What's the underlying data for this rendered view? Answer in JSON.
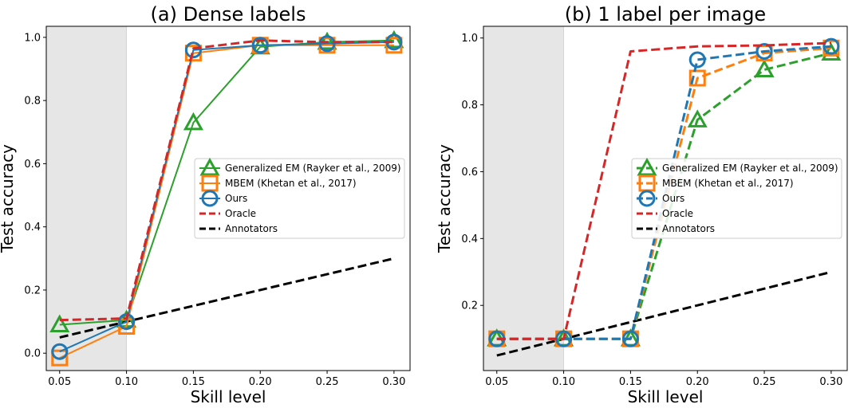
{
  "chart_data": [
    {
      "type": "line",
      "title": "(a) Dense labels",
      "xlabel": "Skill level",
      "ylabel": "Test accuracy",
      "x": [
        0.05,
        0.1,
        0.15,
        0.2,
        0.25,
        0.3
      ],
      "xticks": [
        "0.05",
        "0.10",
        "0.15",
        "0.20",
        "0.25",
        "0.30"
      ],
      "xlim": [
        0.04,
        0.312
      ],
      "yticks": [
        "0.0",
        "0.2",
        "0.4",
        "0.6",
        "0.8",
        "1.0"
      ],
      "ylim": [
        -0.055,
        1.035
      ],
      "shaded_region": [
        0.04,
        0.1
      ],
      "legend_position": "center-right",
      "series": [
        {
          "name": "Generalized EM (Rayker et al., 2009)",
          "color": "#2ca02c",
          "style": "solid",
          "marker": "triangle",
          "values": [
            0.09,
            0.105,
            0.73,
            0.97,
            0.985,
            0.99
          ]
        },
        {
          "name": "MBEM (Khetan et al., 2017)",
          "color": "#ff7f0e",
          "style": "solid",
          "marker": "square",
          "values": [
            -0.015,
            0.085,
            0.95,
            0.975,
            0.975,
            0.975
          ]
        },
        {
          "name": "Ours",
          "color": "#1f77b4",
          "style": "solid",
          "marker": "circle",
          "values": [
            0.005,
            0.1,
            0.96,
            0.975,
            0.98,
            0.985
          ]
        },
        {
          "name": "Oracle",
          "color": "#d62728",
          "style": "dashed",
          "marker": "none",
          "values": [
            0.105,
            0.11,
            0.965,
            0.99,
            0.985,
            0.985
          ]
        },
        {
          "name": "Annotators",
          "color": "#000000",
          "style": "dashed",
          "marker": "none",
          "values": [
            0.05,
            0.1,
            0.15,
            0.2,
            0.25,
            0.3
          ]
        }
      ]
    },
    {
      "type": "line",
      "title": "(b) 1 label per image",
      "xlabel": "Skill level",
      "ylabel": "Test accuracy",
      "x": [
        0.05,
        0.1,
        0.15,
        0.2,
        0.25,
        0.3
      ],
      "xticks": [
        "0.05",
        "0.10",
        "0.15",
        "0.20",
        "0.25",
        "0.30"
      ],
      "xlim": [
        0.04,
        0.312
      ],
      "yticks": [
        "0.2",
        "0.4",
        "0.6",
        "0.8",
        "1.0"
      ],
      "ylim": [
        0.005,
        1.035
      ],
      "shaded_region": [
        0.04,
        0.1
      ],
      "legend_position": "center-right",
      "series": [
        {
          "name": "Generalized EM (Rayker et al., 2009)",
          "color": "#2ca02c",
          "style": "dashed",
          "marker": "triangle",
          "values": [
            0.1,
            0.1,
            0.1,
            0.755,
            0.905,
            0.955
          ]
        },
        {
          "name": "MBEM (Khetan et al., 2017)",
          "color": "#ff7f0e",
          "style": "dashed",
          "marker": "square",
          "values": [
            0.1,
            0.1,
            0.1,
            0.88,
            0.955,
            0.97
          ]
        },
        {
          "name": "Ours",
          "color": "#1f77b4",
          "style": "dashed",
          "marker": "circle",
          "values": [
            0.1,
            0.1,
            0.1,
            0.935,
            0.96,
            0.975
          ]
        },
        {
          "name": "Oracle",
          "color": "#d62728",
          "style": "dashed",
          "marker": "none",
          "values": [
            0.1,
            0.1,
            0.96,
            0.975,
            0.978,
            0.985
          ]
        },
        {
          "name": "Annotators",
          "color": "#000000",
          "style": "dashed",
          "marker": "none",
          "values": [
            0.05,
            0.1,
            0.15,
            0.2,
            0.25,
            0.3
          ]
        }
      ]
    }
  ]
}
